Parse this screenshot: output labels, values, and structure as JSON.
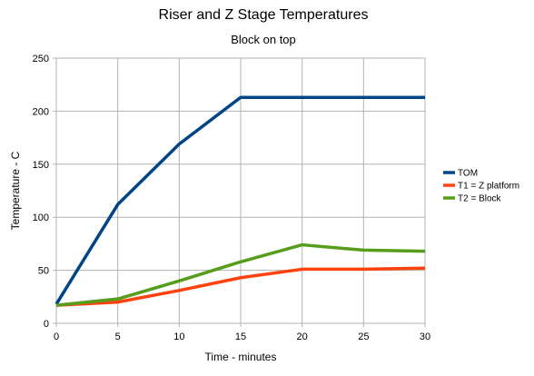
{
  "chart_data": {
    "type": "line",
    "title": "Riser and Z Stage Temperatures",
    "subtitle": "Block on top",
    "xlabel": "Time - minutes",
    "ylabel": "Temperature - C",
    "x": [
      0,
      5,
      10,
      15,
      20,
      25,
      30
    ],
    "xlim": [
      0,
      30
    ],
    "ylim": [
      0,
      250
    ],
    "xticks": [
      "0",
      "5",
      "10",
      "15",
      "20",
      "25",
      "30"
    ],
    "yticks": [
      "0",
      "50",
      "100",
      "150",
      "200",
      "250"
    ],
    "grid": true,
    "legend_position": "right",
    "series": [
      {
        "name": "TOM",
        "color": "#004586",
        "values": [
          18,
          112,
          169,
          213,
          213,
          213,
          213
        ]
      },
      {
        "name": "T1 = Z platform",
        "color": "#ff420e",
        "values": [
          17,
          20,
          31,
          43,
          51,
          51,
          52
        ]
      },
      {
        "name": "T2 = Block",
        "color": "#579d1c",
        "values": [
          17,
          23,
          40,
          58,
          74,
          69,
          68
        ]
      }
    ]
  }
}
